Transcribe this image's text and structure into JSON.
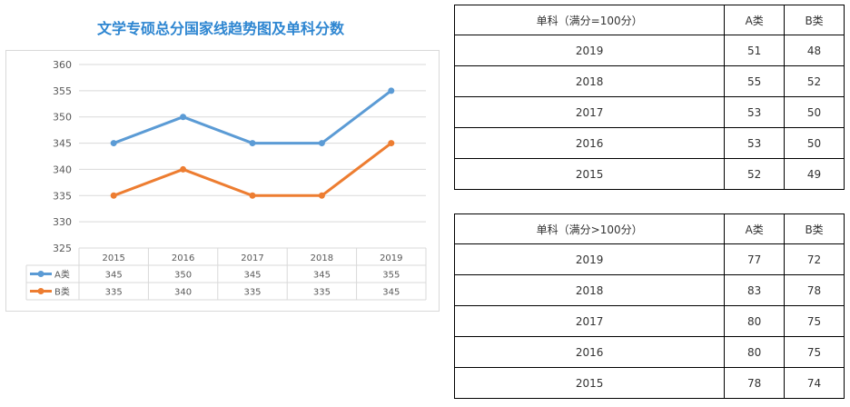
{
  "chart_data": {
    "type": "line",
    "title": "文学专硕总分国家线趋势图及单科分数",
    "categories": [
      "2015",
      "2016",
      "2017",
      "2018",
      "2019"
    ],
    "series": [
      {
        "name": "A类",
        "values": [
          345,
          350,
          345,
          345,
          355
        ],
        "color": "#5b9bd5"
      },
      {
        "name": "B类",
        "values": [
          335,
          340,
          335,
          335,
          345
        ],
        "color": "#ed7d31"
      }
    ],
    "ylim": [
      325,
      360
    ],
    "yticks": [
      325,
      330,
      335,
      340,
      345,
      350,
      355,
      360
    ],
    "grid": true,
    "legend": "data-table"
  },
  "tables": [
    {
      "header": [
        "单科（满分=100分）",
        "A类",
        "B类"
      ],
      "rows": [
        [
          "2019",
          "51",
          "48"
        ],
        [
          "2018",
          "55",
          "52"
        ],
        [
          "2017",
          "53",
          "50"
        ],
        [
          "2016",
          "53",
          "50"
        ],
        [
          "2015",
          "52",
          "49"
        ]
      ]
    },
    {
      "header": [
        "单科（满分>100分）",
        "A类",
        "B类"
      ],
      "rows": [
        [
          "2019",
          "77",
          "72"
        ],
        [
          "2018",
          "83",
          "78"
        ],
        [
          "2017",
          "80",
          "75"
        ],
        [
          "2016",
          "80",
          "75"
        ],
        [
          "2015",
          "78",
          "74"
        ]
      ]
    }
  ]
}
